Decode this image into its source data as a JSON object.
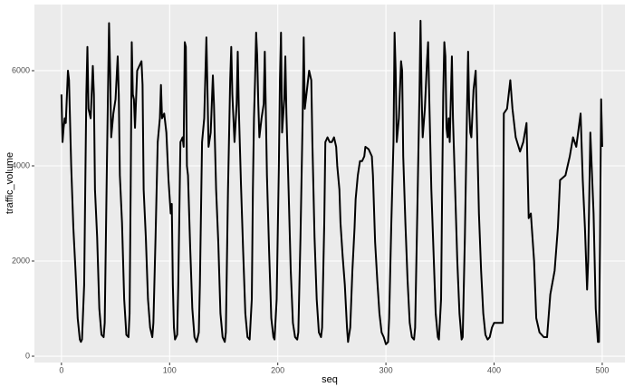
{
  "chart_data": {
    "type": "line",
    "x_label": "seq",
    "y_label": "traffic_volume",
    "xlim": [
      -25,
      521
    ],
    "ylim": [
      -133,
      7390
    ],
    "xticks": [
      0,
      100,
      200,
      300,
      400,
      500
    ],
    "yticks": [
      0,
      2000,
      4000,
      6000
    ],
    "grid": true,
    "series": [
      {
        "color": "#000000",
        "x": [
          0,
          1,
          2,
          3,
          4,
          6,
          7,
          9,
          11,
          13,
          15,
          17,
          18,
          19,
          21,
          22,
          23,
          24,
          25,
          27,
          29,
          30,
          31,
          33,
          35,
          37,
          39,
          40,
          42,
          43,
          44,
          45,
          46,
          48,
          50,
          52,
          53,
          54,
          56,
          58,
          60,
          62,
          63,
          64,
          65,
          66,
          67,
          68,
          70,
          72,
          74,
          75,
          76,
          78,
          80,
          82,
          84,
          85,
          87,
          89,
          91,
          92,
          93,
          95,
          97,
          99,
          101,
          102,
          103,
          104,
          105,
          107,
          108,
          110,
          112,
          113,
          114,
          115,
          116,
          117,
          119,
          121,
          123,
          125,
          127,
          128,
          130,
          132,
          134,
          135,
          136,
          138,
          140,
          141,
          143,
          145,
          147,
          149,
          151,
          152,
          154,
          156,
          157,
          158,
          160,
          162,
          163,
          164,
          166,
          168,
          170,
          172,
          174,
          176,
          177,
          178,
          179,
          180,
          181,
          182,
          183,
          185,
          187,
          188,
          190,
          192,
          194,
          196,
          197,
          199,
          201,
          202,
          203,
          204,
          206,
          207,
          208,
          210,
          212,
          214,
          216,
          218,
          219,
          221,
          223,
          224,
          225,
          227,
          229,
          231,
          232,
          234,
          236,
          238,
          240,
          241,
          243,
          244,
          246,
          248,
          250,
          252,
          254,
          255,
          257,
          258,
          260,
          262,
          264,
          265,
          267,
          269,
          271,
          272,
          274,
          276,
          278,
          280,
          281,
          284,
          287,
          288,
          290,
          292,
          294,
          296,
          298,
          300,
          302,
          303,
          305,
          307,
          308,
          309,
          310,
          312,
          314,
          315,
          316,
          318,
          320,
          322,
          324,
          326,
          327,
          329,
          331,
          332,
          333,
          334,
          336,
          338,
          339,
          340,
          342,
          344,
          346,
          348,
          349,
          351,
          352,
          353,
          354,
          355,
          356,
          357,
          358,
          359,
          361,
          362,
          364,
          366,
          368,
          370,
          371,
          373,
          375,
          376,
          377,
          378,
          379,
          381,
          383,
          384,
          386,
          388,
          390,
          392,
          394,
          396,
          398,
          400,
          408,
          409,
          412,
          415,
          417,
          420,
          424,
          427,
          430,
          432,
          434,
          437,
          439,
          442,
          446,
          449,
          452,
          456,
          459,
          461,
          466,
          470,
          473,
          476,
          480,
          482,
          484,
          486,
          487,
          489,
          492,
          494,
          496,
          497,
          498,
          499,
          500
        ],
        "values": [
          5500,
          4500,
          4800,
          5000,
          4900,
          6000,
          5800,
          4000,
          2700,
          1800,
          800,
          350,
          300,
          350,
          1500,
          3500,
          5500,
          6500,
          5200,
          5000,
          6100,
          5500,
          3500,
          2500,
          1000,
          450,
          400,
          700,
          4000,
          5500,
          7000,
          6000,
          4600,
          5100,
          5400,
          6300,
          5500,
          3800,
          2800,
          1200,
          450,
          400,
          900,
          3500,
          6600,
          5500,
          5400,
          4800,
          6000,
          6100,
          6200,
          5700,
          3500,
          2500,
          1200,
          600,
          400,
          700,
          2500,
          4500,
          5000,
          5700,
          5000,
          5100,
          4700,
          3700,
          3000,
          3200,
          1500,
          600,
          350,
          450,
          1500,
          4500,
          4600,
          4400,
          6600,
          6500,
          4000,
          3800,
          2300,
          1000,
          400,
          300,
          500,
          1500,
          4500,
          5000,
          6700,
          5600,
          4400,
          4700,
          5900,
          5300,
          3500,
          2400,
          900,
          400,
          300,
          500,
          3500,
          5800,
          6500,
          5500,
          4500,
          5300,
          6400,
          5200,
          3600,
          2200,
          900,
          400,
          350,
          1200,
          3500,
          5000,
          5800,
          6800,
          6300,
          5300,
          4600,
          5000,
          5300,
          6400,
          3800,
          2200,
          800,
          400,
          350,
          1200,
          4000,
          5800,
          6800,
          4700,
          5400,
          6300,
          5100,
          3500,
          1800,
          700,
          400,
          350,
          500,
          2500,
          5000,
          6700,
          5200,
          5600,
          6000,
          5800,
          4500,
          2500,
          1200,
          500,
          400,
          600,
          2800,
          4500,
          4600,
          4500,
          4500,
          4600,
          4400,
          4000,
          3500,
          2800,
          2100,
          1500,
          600,
          300,
          600,
          1800,
          2700,
          3300,
          3800,
          4100,
          4100,
          4200,
          4400,
          4350,
          4200,
          3800,
          2400,
          1600,
          900,
          500,
          400,
          250,
          300,
          800,
          2800,
          4500,
          6800,
          6000,
          4500,
          5000,
          6200,
          6000,
          4200,
          2800,
          1600,
          700,
          400,
          350,
          600,
          3000,
          5500,
          7050,
          5500,
          4600,
          5200,
          6200,
          6600,
          5500,
          3500,
          2200,
          900,
          400,
          350,
          1200,
          3500,
          5500,
          6600,
          6300,
          4800,
          4600,
          5000,
          4500,
          6300,
          5000,
          3500,
          2000,
          900,
          350,
          400,
          2500,
          5200,
          6400,
          5200,
          4700,
          4600,
          5600,
          6000,
          5000,
          3000,
          1800,
          900,
          450,
          350,
          400,
          600,
          700,
          700,
          5100,
          5200,
          5800,
          5200,
          4600,
          4300,
          4500,
          4900,
          2900,
          3000,
          2000,
          800,
          500,
          400,
          400,
          1300,
          1800,
          2700,
          3700,
          3800,
          4200,
          4600,
          4400,
          5100,
          3700,
          2700,
          1400,
          2000,
          4700,
          3000,
          1000,
          300,
          300,
          2500,
          5400,
          4400
        ]
      }
    ]
  }
}
